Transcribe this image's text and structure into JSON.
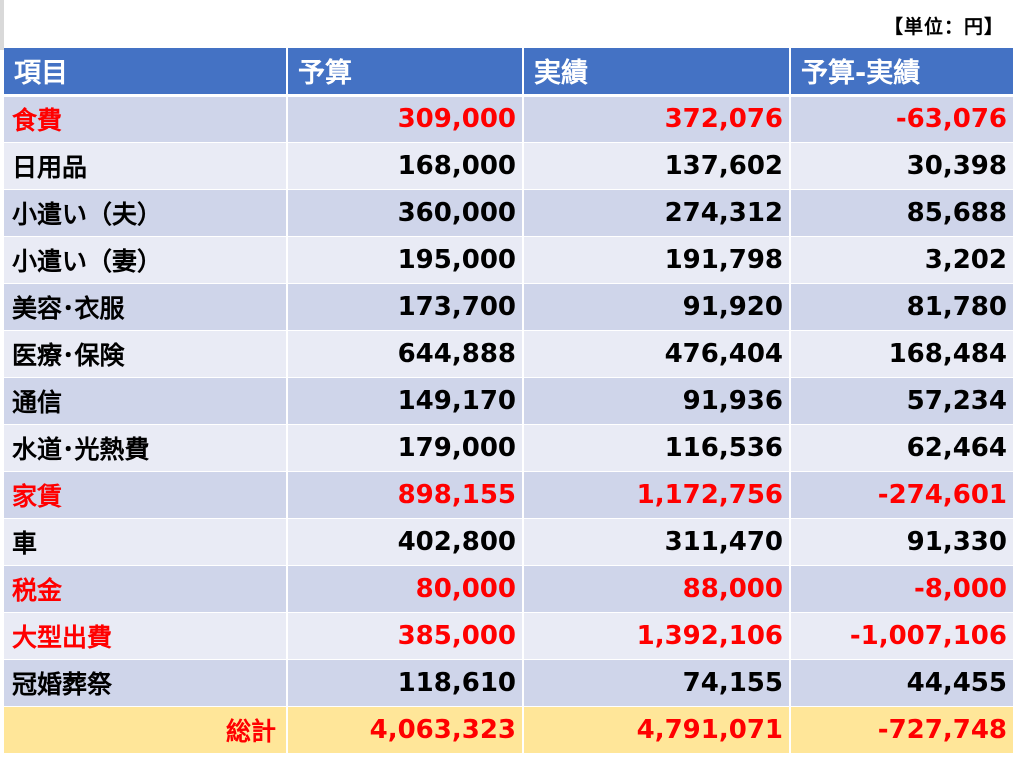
{
  "unit_note": "【単位：円】",
  "colors": {
    "header_bg": "#4472c4",
    "row_dark": "#cfd5ea",
    "row_light": "#e9ebf5",
    "total_bg": "#ffe699",
    "overbudget_text": "#ff0000"
  },
  "table": {
    "headers": [
      "項目",
      "予算",
      "実績",
      "予算-実績"
    ],
    "rows": [
      {
        "item": "食費",
        "budget": "309,000",
        "actual": "372,076",
        "diff": "-63,076",
        "over": true
      },
      {
        "item": "日用品",
        "budget": "168,000",
        "actual": "137,602",
        "diff": "30,398",
        "over": false
      },
      {
        "item": "小遣い（夫）",
        "budget": "360,000",
        "actual": "274,312",
        "diff": "85,688",
        "over": false
      },
      {
        "item": "小遣い（妻）",
        "budget": "195,000",
        "actual": "191,798",
        "diff": "3,202",
        "over": false
      },
      {
        "item": "美容･衣服",
        "budget": "173,700",
        "actual": "91,920",
        "diff": "81,780",
        "over": false
      },
      {
        "item": "医療･保険",
        "budget": "644,888",
        "actual": "476,404",
        "diff": "168,484",
        "over": false
      },
      {
        "item": "通信",
        "budget": "149,170",
        "actual": "91,936",
        "diff": "57,234",
        "over": false
      },
      {
        "item": "水道･光熱費",
        "budget": "179,000",
        "actual": "116,536",
        "diff": "62,464",
        "over": false
      },
      {
        "item": "家賃",
        "budget": "898,155",
        "actual": "1,172,756",
        "diff": "-274,601",
        "over": true
      },
      {
        "item": "車",
        "budget": "402,800",
        "actual": "311,470",
        "diff": "91,330",
        "over": false
      },
      {
        "item": "税金",
        "budget": "80,000",
        "actual": "88,000",
        "diff": "-8,000",
        "over": true
      },
      {
        "item": "大型出費",
        "budget": "385,000",
        "actual": "1,392,106",
        "diff": "-1,007,106",
        "over": true
      },
      {
        "item": "冠婚葬祭",
        "budget": "118,610",
        "actual": "74,155",
        "diff": "44,455",
        "over": false
      }
    ],
    "total": {
      "item": "総計",
      "budget": "4,063,323",
      "actual": "4,791,071",
      "diff": "-727,748"
    }
  }
}
